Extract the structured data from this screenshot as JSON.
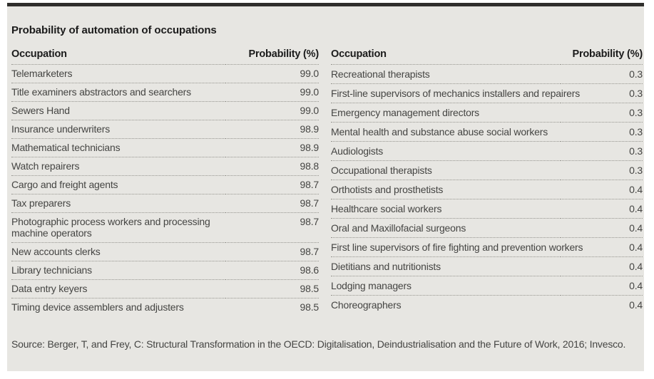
{
  "chart_data": {
    "type": "table",
    "title": "Probability of automation of occupations",
    "columns": [
      "Occupation",
      "Probability (%)"
    ],
    "layout": {
      "two_column_panel": true,
      "value_alignment": "right",
      "row_separator": "dotted"
    },
    "tables": [
      {
        "name": "highest-probability-occupations",
        "rows": [
          [
            "Telemarketers",
            "99.0"
          ],
          [
            "Title examiners abstractors and searchers",
            "99.0"
          ],
          [
            "Sewers Hand",
            "99.0"
          ],
          [
            "Insurance underwriters",
            "98.9"
          ],
          [
            "Mathematical technicians",
            "98.9"
          ],
          [
            "Watch repairers",
            "98.8"
          ],
          [
            "Cargo and freight agents",
            "98.7"
          ],
          [
            "Tax preparers",
            "98.7"
          ],
          [
            "Photographic process workers and processing machine operators",
            "98.7"
          ],
          [
            "New accounts clerks",
            "98.7"
          ],
          [
            "Library technicians",
            "98.6"
          ],
          [
            "Data entry keyers",
            "98.5"
          ],
          [
            "Timing device assemblers and adjusters",
            "98.5"
          ]
        ]
      },
      {
        "name": "lowest-probability-occupations",
        "rows": [
          [
            "Recreational therapists",
            "0.3"
          ],
          [
            "First-line supervisors of mechanics installers and repairers",
            "0.3"
          ],
          [
            "Emergency management directors",
            "0.3"
          ],
          [
            "Mental health and substance abuse social workers",
            "0.3"
          ],
          [
            "Audiologists",
            "0.3"
          ],
          [
            "Occupational therapists",
            "0.3"
          ],
          [
            "Orthotists and prosthetists",
            "0.4"
          ],
          [
            "Healthcare social workers",
            "0.4"
          ],
          [
            "Oral and Maxillofacial surgeons",
            "0.4"
          ],
          [
            "First line supervisors of fire fighting and prevention workers",
            "0.4"
          ],
          [
            "Dietitians and nutritionists",
            "0.4"
          ],
          [
            "Lodging managers",
            "0.4"
          ],
          [
            "Choreographers",
            "0.4"
          ]
        ]
      }
    ],
    "source": "Source: Berger, T, and Frey, C: Structural Transformation in the OECD: Digitalisation, Deindustrialisation and the Future of Work, 2016; Invesco."
  },
  "colors": {
    "page_background": "#ffffff",
    "panel_background": "#e7e6e2",
    "top_bar": "#2f2e2c",
    "heading_text": "#1b1b1b",
    "body_text": "#454543",
    "divider_dotted": "#96958f"
  }
}
